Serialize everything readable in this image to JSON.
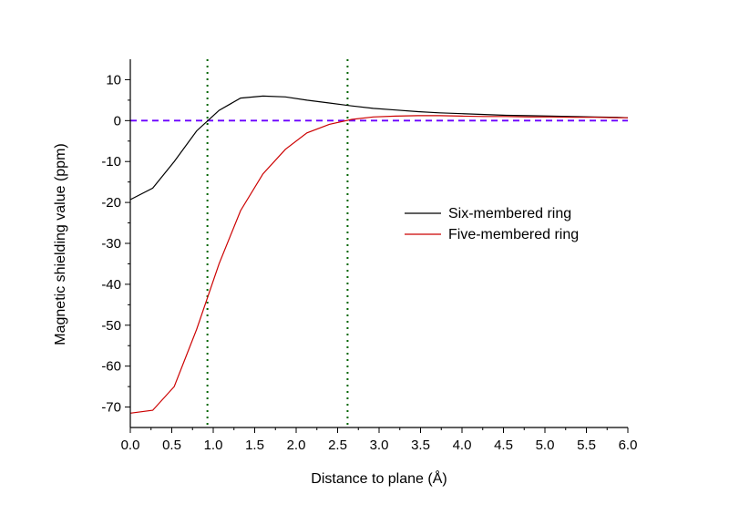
{
  "chart_data": {
    "type": "line",
    "title": "",
    "xlabel": "Distance to plane (Å)",
    "ylabel": "Magnetic shielding value (ppm)",
    "xlim": [
      0.0,
      6.0
    ],
    "ylim": [
      -75,
      15
    ],
    "x_ticks": [
      "0.0",
      "0.5",
      "1.0",
      "1.5",
      "2.0",
      "2.5",
      "3.0",
      "3.5",
      "4.0",
      "4.5",
      "5.0",
      "5.5",
      "6.0"
    ],
    "y_ticks": [
      "10",
      "0",
      "-10",
      "-20",
      "-30",
      "-40",
      "-50",
      "-60",
      "-70"
    ],
    "legend_position": "right-middle",
    "series": [
      {
        "name": "Six-membered ring",
        "color": "#000000",
        "x": [
          0.0,
          0.27,
          0.53,
          0.8,
          1.07,
          1.33,
          1.6,
          1.87,
          2.13,
          2.4,
          2.67,
          2.93,
          3.2,
          3.47,
          3.73,
          4.0,
          4.27,
          4.53,
          4.8,
          5.07,
          5.33,
          5.6,
          5.87,
          6.0
        ],
        "y": [
          -19.3,
          -16.5,
          -10.0,
          -2.5,
          2.5,
          5.5,
          6.0,
          5.8,
          5.0,
          4.3,
          3.6,
          3.0,
          2.6,
          2.2,
          1.9,
          1.7,
          1.5,
          1.3,
          1.2,
          1.1,
          1.0,
          0.9,
          0.8,
          0.7
        ]
      },
      {
        "name": "Five-membered ring",
        "color": "#cc0000",
        "x": [
          0.0,
          0.27,
          0.53,
          0.8,
          1.07,
          1.33,
          1.6,
          1.87,
          2.13,
          2.4,
          2.67,
          2.93,
          3.2,
          3.47,
          3.73,
          4.0,
          4.27,
          4.53,
          4.8,
          5.07,
          5.33,
          5.6,
          5.87,
          6.0
        ],
        "y": [
          -71.5,
          -70.8,
          -65.0,
          -51.0,
          -35.0,
          -22.0,
          -13.0,
          -7.0,
          -3.0,
          -0.9,
          0.3,
          0.9,
          1.1,
          1.2,
          1.2,
          1.1,
          1.0,
          1.0,
          0.9,
          0.9,
          0.8,
          0.8,
          0.7,
          0.7
        ]
      }
    ],
    "reference_lines": [
      {
        "orientation": "horizontal",
        "value": 0,
        "color": "#6b00ff",
        "style": "dashed"
      },
      {
        "orientation": "vertical",
        "value": 0.93,
        "color": "#006400",
        "style": "dotted"
      },
      {
        "orientation": "vertical",
        "value": 2.62,
        "color": "#006400",
        "style": "dotted"
      }
    ]
  }
}
